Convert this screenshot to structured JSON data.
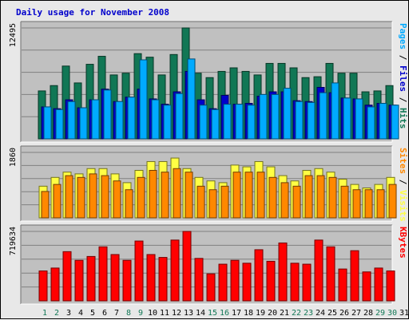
{
  "chart_data": {
    "type": "bar",
    "title": "Daily usage for November 2008",
    "colors": {
      "hits": "#117755",
      "files": "#00aaff",
      "sites": "#ff8800",
      "visits": "#ffff44",
      "kbytes": "#ff0000",
      "weekend_label": "#117755",
      "weekday_label": "#000000",
      "panel_bg": "#c0c0c0",
      "outer_bg": "#e8e8e8"
    },
    "categories": [
      "1",
      "2",
      "3",
      "4",
      "5",
      "6",
      "7",
      "8",
      "9",
      "10",
      "11",
      "12",
      "13",
      "14",
      "15",
      "16",
      "17",
      "18",
      "19",
      "20",
      "21",
      "22",
      "23",
      "24",
      "25",
      "26",
      "27",
      "28",
      "29",
      "30",
      "31"
    ],
    "weekend_days": [
      1,
      2,
      8,
      9,
      15,
      16,
      22,
      23,
      29,
      30
    ],
    "panels": [
      {
        "name": "hits-files",
        "ymax_label": "12495",
        "ylim": [
          0,
          12495
        ],
        "right_label_parts": [
          {
            "text": "Pages",
            "color": "#00aaff"
          },
          {
            "text": " / ",
            "color": "#000000"
          },
          {
            "text": "Files",
            "color": "#0000cc"
          },
          {
            "text": " / ",
            "color": "#000000"
          },
          {
            "text": "Hits",
            "color": "#117755"
          }
        ],
        "series": [
          {
            "name": "Hits",
            "color": "#117755",
            "values": [
              5400,
              6000,
              8200,
              6300,
              8400,
              9300,
              7200,
              7400,
              9600,
              9200,
              7200,
              9500,
              12495,
              7400,
              6900,
              7600,
              8000,
              7600,
              7200,
              8500,
              8500,
              8000,
              6900,
              7000,
              8500,
              7400,
              7400,
              5300,
              5400,
              6000,
              0
            ]
          },
          {
            "name": "Files",
            "color": "#0000cc",
            "values": [
              3600,
              3400,
              4400,
              3500,
              4400,
              5600,
              4200,
              4700,
              5600,
              4500,
              3900,
              5300,
              7600,
              4400,
              3400,
              4900,
              3900,
              4000,
              4800,
              5300,
              5300,
              4300,
              4200,
              5800,
              5200,
              4600,
              4500,
              3800,
              4000,
              3800,
              0
            ]
          },
          {
            "name": "Pages",
            "color": "#00aaff",
            "values": [
              3600,
              3300,
              4200,
              3500,
              4400,
              5500,
              4200,
              4700,
              8900,
              4400,
              3800,
              5100,
              9000,
              3800,
              3300,
              3900,
              3900,
              3800,
              5000,
              5000,
              5700,
              4200,
              4100,
              5200,
              6300,
              4600,
              4500,
              3600,
              4000,
              3800,
              0
            ]
          }
        ]
      },
      {
        "name": "sites-visits",
        "ymax_label": "1860",
        "ylim": [
          0,
          1860
        ],
        "right_label_parts": [
          {
            "text": "Sites",
            "color": "#ff8800"
          },
          {
            "text": " / ",
            "color": "#000000"
          },
          {
            "text": "Visits",
            "color": "#ffff44"
          }
        ],
        "series": [
          {
            "name": "Visits",
            "color": "#ffff44",
            "values": [
              900,
              1150,
              1300,
              1250,
              1400,
              1400,
              1250,
              1000,
              1350,
              1600,
              1600,
              1700,
              1400,
              1150,
              1050,
              1000,
              1500,
              1450,
              1600,
              1450,
              1200,
              1050,
              1350,
              1400,
              1300,
              1100,
              950,
              850,
              950,
              1150,
              0
            ]
          },
          {
            "name": "Sites",
            "color": "#ff8800",
            "values": [
              750,
              950,
              1200,
              1150,
              1250,
              1200,
              1050,
              800,
              1150,
              1350,
              1300,
              1400,
              1300,
              900,
              800,
              900,
              1300,
              1300,
              1300,
              1150,
              1000,
              900,
              1200,
              1200,
              1150,
              900,
              800,
              800,
              800,
              950,
              0
            ]
          }
        ]
      },
      {
        "name": "kbytes",
        "ymax_label": "719634",
        "ylim": [
          0,
          719634
        ],
        "right_label_parts": [
          {
            "text": "KBytes",
            "color": "#ff0000"
          }
        ],
        "series": [
          {
            "name": "KBytes",
            "color": "#ff0000",
            "values": [
              310000,
              340000,
              510000,
              420000,
              460000,
              560000,
              480000,
              420000,
              620000,
              480000,
              450000,
              630000,
              719634,
              440000,
              280000,
              380000,
              420000,
              390000,
              530000,
              410000,
              600000,
              390000,
              380000,
              630000,
              560000,
              330000,
              520000,
              300000,
              340000,
              310000,
              0
            ]
          }
        ]
      }
    ]
  }
}
